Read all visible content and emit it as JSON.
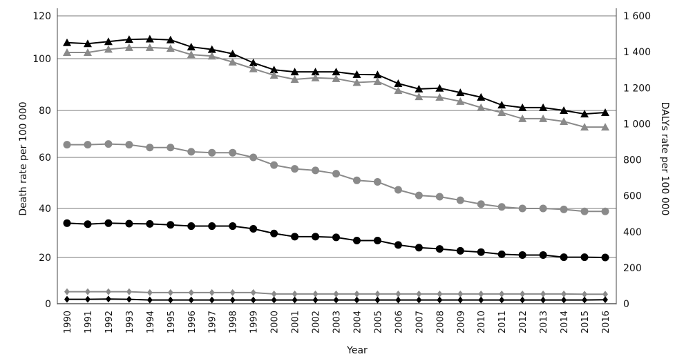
{
  "chart_data": {
    "type": "line",
    "title": "",
    "xlabel": "Year",
    "ylabel": "Death rate per 100 000",
    "y2label": "DALYs rate per 100 000",
    "ylim": [
      0,
      120
    ],
    "y2lim": [
      0,
      1600
    ],
    "yticks": [
      "0",
      "20",
      "40",
      "60",
      "80",
      "100",
      "120"
    ],
    "y2ticks": [
      "0",
      "200",
      "400",
      "600",
      "800",
      "1 000",
      "1 200",
      "1 400",
      "1 600"
    ],
    "grid": true,
    "x": [
      1990,
      1991,
      1992,
      1993,
      1994,
      1995,
      1996,
      1997,
      1998,
      1999,
      2000,
      2001,
      2002,
      2003,
      2004,
      2005,
      2006,
      2007,
      2008,
      2009,
      2010,
      2011,
      2012,
      2013,
      2014,
      2015,
      2016
    ],
    "series": [
      {
        "marker": "triangle",
        "color": "#000000",
        "values": [
          107.5,
          107,
          108,
          109,
          109.2,
          108.8,
          105.5,
          104.3,
          102.3,
          98.4,
          95.7,
          94.9,
          94.9,
          94.9,
          93.9,
          93.8,
          90.4,
          88.3,
          88.6,
          86.9,
          85.1,
          82.1,
          81.1,
          81.1,
          80,
          78.5,
          79.1
        ]
      },
      {
        "marker": "triangle",
        "color": "#8a8a8a",
        "values": [
          102.9,
          102.9,
          104.4,
          105.2,
          105.2,
          104.8,
          101.9,
          101.2,
          98.7,
          96.1,
          93.6,
          92,
          92.6,
          92.3,
          90.8,
          91.2,
          87.7,
          85.3,
          85.1,
          83.5,
          81.1,
          79.1,
          76.5,
          76.5,
          75.3,
          72.9,
          72.9
        ]
      },
      {
        "marker": "circle",
        "color": "#8a8a8a",
        "values": [
          65.4,
          65.4,
          65.7,
          65.4,
          64.2,
          64.2,
          62.4,
          62,
          62,
          60,
          57,
          55.5,
          54.9,
          53.6,
          51,
          50.4,
          47.3,
          45.1,
          44.6,
          43.2,
          41.7,
          40.6,
          40,
          40,
          39.6,
          38.8,
          38.8
        ]
      },
      {
        "marker": "circle",
        "color": "#000000",
        "values": [
          34,
          33.6,
          34,
          33.8,
          33.7,
          33.3,
          32.8,
          32.8,
          32.8,
          31.7,
          29.8,
          28.5,
          28.5,
          28.2,
          26.9,
          26.9,
          25.1,
          24,
          23.5,
          22.7,
          22.2,
          21.3,
          21,
          21,
          20.1,
          20.1,
          20
        ]
      },
      {
        "marker": "diamond",
        "color": "#8a8a8a",
        "values": [
          5.2,
          5.2,
          5.2,
          5.2,
          4.8,
          4.8,
          4.8,
          4.8,
          4.8,
          4.8,
          4.2,
          4.2,
          4.2,
          4.2,
          4.2,
          4.2,
          4.2,
          4.2,
          4.2,
          4.2,
          4.2,
          4.2,
          4.2,
          4.2,
          4.2,
          4.1,
          4.1
        ]
      },
      {
        "marker": "diamond",
        "color": "#000000",
        "values": [
          1.9,
          1.9,
          2,
          1.9,
          1.6,
          1.6,
          1.6,
          1.6,
          1.6,
          1.6,
          1.6,
          1.6,
          1.6,
          1.6,
          1.6,
          1.6,
          1.6,
          1.6,
          1.6,
          1.6,
          1.6,
          1.6,
          1.6,
          1.6,
          1.6,
          1.6,
          1.7
        ]
      }
    ]
  }
}
